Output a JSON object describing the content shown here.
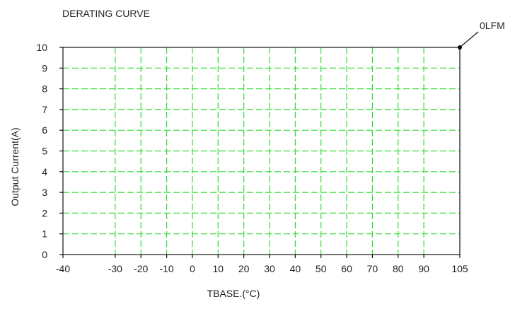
{
  "chart_data": {
    "type": "line",
    "title": "DERATING CURVE",
    "xlabel": "TBASE.(°C)",
    "ylabel": "Output Current(A)",
    "x_ticks": [
      -40,
      -30,
      -20,
      -10,
      0,
      10,
      20,
      30,
      40,
      50,
      60,
      70,
      80,
      90,
      105
    ],
    "y_ticks": [
      0,
      1,
      2,
      3,
      4,
      5,
      6,
      7,
      8,
      9,
      10
    ],
    "x_tick_labels": [
      "-40",
      "-30",
      "-20",
      "-10",
      "0",
      "10",
      "20",
      "30",
      "40",
      "50",
      "60",
      "70",
      "80",
      "90",
      "105"
    ],
    "y_tick_labels": [
      "0",
      "1",
      "2",
      "3",
      "4",
      "5",
      "6",
      "7",
      "8",
      "9",
      "10"
    ],
    "xlim": [
      -40,
      105
    ],
    "ylim": [
      0,
      10
    ],
    "grid": true,
    "grid_color": "#33dd33",
    "series": [
      {
        "name": "0LFM",
        "x": [
          105
        ],
        "y": [
          10
        ],
        "color": "#000000"
      }
    ],
    "annotations": [
      {
        "text": "0LFM",
        "x": 105,
        "y": 10
      }
    ]
  }
}
